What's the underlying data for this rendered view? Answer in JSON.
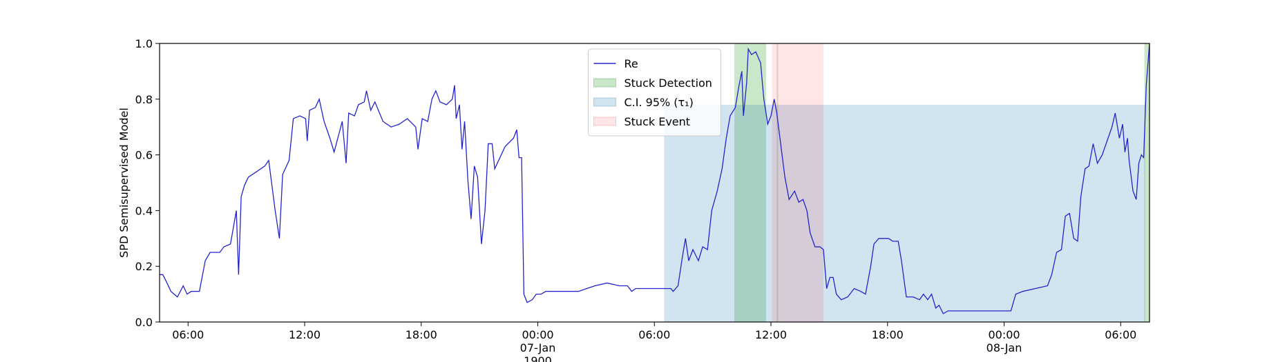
{
  "chart_data": {
    "type": "line",
    "ylabel": "SPD Semisupervised Model",
    "x": [
      "1900-01-06 04:32",
      "1900-01-06 04:42",
      "1900-01-06 04:55",
      "1900-01-06 05:07",
      "1900-01-06 05:27",
      "1900-01-06 05:45",
      "1900-01-06 05:57",
      "1900-01-06 06:10",
      "1900-01-06 06:35",
      "1900-01-06 06:53",
      "1900-01-06 07:08",
      "1900-01-06 07:38",
      "1900-01-06 07:51",
      "1900-01-06 08:11",
      "1900-01-06 08:29",
      "1900-01-06 08:36",
      "1900-01-06 08:44",
      "1900-01-06 08:54",
      "1900-01-06 09:06",
      "1900-01-06 09:32",
      "1900-01-06 09:57",
      "1900-01-06 10:09",
      "1900-01-06 10:29",
      "1900-01-06 10:42",
      "1900-01-06 10:52",
      "1900-01-06 11:12",
      "1900-01-06 11:25",
      "1900-01-06 11:45",
      "1900-01-06 12:03",
      "1900-01-06 12:08",
      "1900-01-06 12:15",
      "1900-01-06 12:33",
      "1900-01-06 12:45",
      "1900-01-06 13:00",
      "1900-01-06 13:18",
      "1900-01-06 13:31",
      "1900-01-06 13:56",
      "1900-01-06 14:08",
      "1900-01-06 14:16",
      "1900-01-06 14:34",
      "1900-01-06 14:46",
      "1900-01-06 15:04",
      "1900-01-06 15:11",
      "1900-01-06 15:24",
      "1900-01-06 15:37",
      "1900-01-06 16:02",
      "1900-01-06 16:27",
      "1900-01-06 16:52",
      "1900-01-06 17:17",
      "1900-01-06 17:43",
      "1900-01-06 17:50",
      "1900-01-06 18:03",
      "1900-01-06 18:20",
      "1900-01-06 18:33",
      "1900-01-06 18:45",
      "1900-01-06 18:58",
      "1900-01-06 19:18",
      "1900-01-06 19:36",
      "1900-01-06 19:43",
      "1900-01-06 19:48",
      "1900-01-06 19:58",
      "1900-01-06 20:06",
      "1900-01-06 20:14",
      "1900-01-06 20:24",
      "1900-01-06 20:34",
      "1900-01-06 20:44",
      "1900-01-06 20:54",
      "1900-01-06 21:06",
      "1900-01-06 21:17",
      "1900-01-06 21:27",
      "1900-01-06 21:39",
      "1900-01-06 21:47",
      "1900-01-06 21:59",
      "1900-01-06 22:19",
      "1900-01-06 22:45",
      "1900-01-06 22:55",
      "1900-01-06 23:02",
      "1900-01-06 23:10",
      "1900-01-06 23:17",
      "1900-01-06 23:27",
      "1900-01-06 23:43",
      "1900-01-06 23:55",
      "1900-01-07 00:10",
      "1900-01-07 00:25",
      "1900-01-07 01:16",
      "1900-01-07 02:06",
      "1900-01-07 02:31",
      "1900-01-07 02:56",
      "1900-01-07 03:34",
      "1900-01-07 04:12",
      "1900-01-07 04:37",
      "1900-01-07 04:50",
      "1900-01-07 05:02",
      "1900-01-07 05:53",
      "1900-01-07 06:51",
      "1900-01-07 06:58",
      "1900-01-07 07:13",
      "1900-01-07 07:26",
      "1900-01-07 07:36",
      "1900-01-07 07:46",
      "1900-01-07 07:59",
      "1900-01-07 08:16",
      "1900-01-07 08:29",
      "1900-01-07 08:44",
      "1900-01-07 08:57",
      "1900-01-07 09:14",
      "1900-01-07 09:29",
      "1900-01-07 09:42",
      "1900-01-07 09:54",
      "1900-01-07 10:10",
      "1900-01-07 10:20",
      "1900-01-07 10:30",
      "1900-01-07 10:35",
      "1900-01-07 10:45",
      "1900-01-07 10:50",
      "1900-01-07 11:00",
      "1900-01-07 11:13",
      "1900-01-07 11:28",
      "1900-01-07 11:38",
      "1900-01-07 11:50",
      "1900-01-07 12:00",
      "1900-01-07 12:10",
      "1900-01-07 12:18",
      "1900-01-07 12:31",
      "1900-01-07 12:43",
      "1900-01-07 12:56",
      "1900-01-07 13:13",
      "1900-01-07 13:26",
      "1900-01-07 13:39",
      "1900-01-07 13:51",
      "1900-01-07 14:01",
      "1900-01-07 14:16",
      "1900-01-07 14:31",
      "1900-01-07 14:42",
      "1900-01-07 14:52",
      "1900-01-07 15:02",
      "1900-01-07 15:12",
      "1900-01-07 15:22",
      "1900-01-07 15:37",
      "1900-01-07 15:57",
      "1900-01-07 16:17",
      "1900-01-07 16:37",
      "1900-01-07 16:52",
      "1900-01-07 17:08",
      "1900-01-07 17:18",
      "1900-01-07 17:33",
      "1900-01-07 18:03",
      "1900-01-07 18:16",
      "1900-01-07 18:33",
      "1900-01-07 18:43",
      "1900-01-07 18:58",
      "1900-01-07 19:19",
      "1900-01-07 19:39",
      "1900-01-07 19:51",
      "1900-01-07 20:04",
      "1900-01-07 20:16",
      "1900-01-07 20:29",
      "1900-01-07 20:39",
      "1900-01-07 20:52",
      "1900-01-07 21:07",
      "1900-01-07 21:37",
      "1900-01-07 22:40",
      "1900-01-08 00:21",
      "1900-01-08 00:36",
      "1900-01-08 00:58",
      "1900-01-08 01:36",
      "1900-01-08 02:14",
      "1900-01-08 02:27",
      "1900-01-08 02:42",
      "1900-01-08 02:57",
      "1900-01-08 03:09",
      "1900-01-08 03:22",
      "1900-01-08 03:35",
      "1900-01-08 03:47",
      "1900-01-08 03:57",
      "1900-01-08 04:10",
      "1900-01-08 04:22",
      "1900-01-08 04:35",
      "1900-01-08 04:48",
      "1900-01-08 05:03",
      "1900-01-08 05:18",
      "1900-01-08 05:33",
      "1900-01-08 05:43",
      "1900-01-08 05:56",
      "1900-01-08 06:06",
      "1900-01-08 06:13",
      "1900-01-08 06:21",
      "1900-01-08 06:26",
      "1900-01-08 06:38",
      "1900-01-08 06:48",
      "1900-01-08 06:56",
      "1900-01-08 07:04",
      "1900-01-08 07:11",
      "1900-01-08 07:19",
      "1900-01-08 07:29"
    ],
    "series": [
      {
        "name": "Re",
        "color": "#2222cc",
        "values": [
          0.17,
          0.17,
          0.14,
          0.11,
          0.09,
          0.13,
          0.1,
          0.11,
          0.11,
          0.22,
          0.25,
          0.25,
          0.27,
          0.28,
          0.4,
          0.17,
          0.45,
          0.49,
          0.52,
          0.54,
          0.56,
          0.58,
          0.4,
          0.3,
          0.53,
          0.58,
          0.73,
          0.74,
          0.73,
          0.65,
          0.76,
          0.77,
          0.8,
          0.72,
          0.66,
          0.61,
          0.72,
          0.57,
          0.75,
          0.74,
          0.78,
          0.79,
          0.83,
          0.76,
          0.79,
          0.72,
          0.7,
          0.71,
          0.73,
          0.7,
          0.62,
          0.73,
          0.72,
          0.8,
          0.83,
          0.79,
          0.78,
          0.8,
          0.85,
          0.73,
          0.78,
          0.62,
          0.72,
          0.51,
          0.37,
          0.56,
          0.52,
          0.28,
          0.4,
          0.64,
          0.64,
          0.55,
          0.58,
          0.63,
          0.66,
          0.69,
          0.59,
          0.59,
          0.1,
          0.07,
          0.08,
          0.1,
          0.1,
          0.11,
          0.11,
          0.11,
          0.12,
          0.13,
          0.14,
          0.13,
          0.13,
          0.11,
          0.12,
          0.12,
          0.12,
          0.11,
          0.13,
          0.23,
          0.3,
          0.22,
          0.26,
          0.22,
          0.27,
          0.26,
          0.4,
          0.47,
          0.55,
          0.66,
          0.74,
          0.77,
          0.84,
          0.9,
          0.74,
          0.86,
          0.98,
          0.96,
          0.97,
          0.93,
          0.8,
          0.71,
          0.74,
          0.8,
          0.75,
          0.63,
          0.52,
          0.44,
          0.47,
          0.43,
          0.44,
          0.4,
          0.32,
          0.27,
          0.27,
          0.26,
          0.12,
          0.16,
          0.16,
          0.1,
          0.08,
          0.09,
          0.12,
          0.11,
          0.1,
          0.2,
          0.28,
          0.3,
          0.3,
          0.29,
          0.29,
          0.22,
          0.09,
          0.09,
          0.08,
          0.1,
          0.08,
          0.1,
          0.05,
          0.06,
          0.03,
          0.04,
          0.04,
          0.04,
          0.04,
          0.1,
          0.11,
          0.12,
          0.13,
          0.17,
          0.25,
          0.26,
          0.38,
          0.39,
          0.3,
          0.29,
          0.45,
          0.55,
          0.56,
          0.64,
          0.57,
          0.6,
          0.65,
          0.7,
          0.75,
          0.66,
          0.71,
          0.61,
          0.66,
          0.58,
          0.47,
          0.44,
          0.57,
          0.6,
          0.59,
          0.85,
          1.0
        ]
      }
    ],
    "spans": [
      {
        "name": "Stuck Detection",
        "color": "#2ca02c",
        "alpha": 0.25,
        "ranges": [
          [
            "1900-01-07 10:07",
            "1900-01-07 11:45"
          ],
          [
            "1900-01-07 12:18",
            "1900-01-07 12:22"
          ],
          [
            "1900-01-08 07:13",
            "1900-01-08 07:29"
          ]
        ]
      },
      {
        "name": "C.I. 95% (τ₁)",
        "color": "#1f77b4",
        "alpha": 0.2,
        "ymax": 0.78,
        "ranges": [
          [
            "1900-01-07 06:30",
            "1900-01-08 07:16"
          ]
        ]
      },
      {
        "name": "Stuck Event",
        "color": "#ff0000",
        "alpha": 0.1,
        "ranges": [
          [
            "1900-01-07 12:03",
            "1900-01-07 14:42"
          ]
        ]
      }
    ],
    "xlim": [
      "1900-01-06 04:32",
      "1900-01-08 07:29"
    ],
    "xticks": [
      {
        "value": "1900-01-06 06:00",
        "label": "06:00"
      },
      {
        "value": "1900-01-06 12:00",
        "label": "12:00"
      },
      {
        "value": "1900-01-06 18:00",
        "label": "18:00"
      },
      {
        "value": "1900-01-07 00:00",
        "label": "00:00\n07-Jan\n1900"
      },
      {
        "value": "1900-01-07 06:00",
        "label": "06:00"
      },
      {
        "value": "1900-01-07 12:00",
        "label": "12:00"
      },
      {
        "value": "1900-01-07 18:00",
        "label": "18:00"
      },
      {
        "value": "1900-01-08 00:00",
        "label": "00:00\n08-Jan"
      },
      {
        "value": "1900-01-08 06:00",
        "label": "06:00"
      }
    ],
    "ylim": [
      0,
      1
    ],
    "yticks": [
      {
        "value": 0,
        "label": "0.0"
      },
      0.2,
      0.4,
      0.6,
      0.8,
      {
        "value": 1,
        "label": "1.0"
      }
    ],
    "legend": "upper center"
  }
}
